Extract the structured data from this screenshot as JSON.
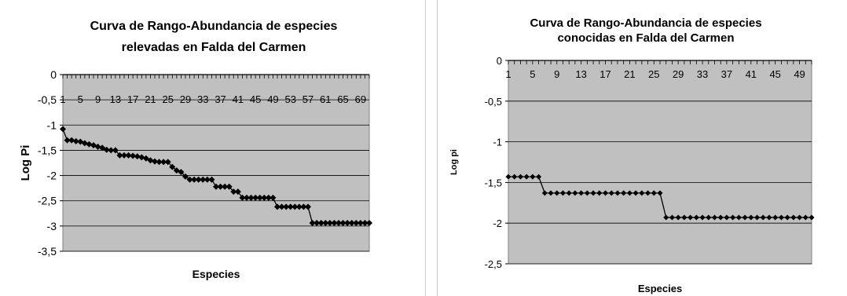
{
  "chart_data": [
    {
      "type": "line",
      "title_lines": [
        "Curva de Rango-Abundancia de especies",
        "relevadas en Falda del Carmen"
      ],
      "xlabel": "Especies",
      "ylabel": "Log Pi",
      "ylim": [
        -3.5,
        0
      ],
      "yticks": [
        0,
        -0.5,
        -1,
        -1.5,
        -2,
        -2.5,
        -3,
        -3.5
      ],
      "ytick_labels": [
        "0",
        "-0,5",
        "-1",
        "-1,5",
        "-2",
        "-2,5",
        "-3",
        "-3,5"
      ],
      "xlim": [
        1,
        71
      ],
      "xticks": [
        1,
        5,
        9,
        13,
        17,
        21,
        25,
        29,
        33,
        37,
        41,
        45,
        49,
        53,
        57,
        61,
        65,
        69
      ],
      "xtick_labels": [
        "1",
        "5",
        "9",
        "13",
        "17",
        "21",
        "25",
        "29",
        "33",
        "37",
        "41",
        "45",
        "49",
        "53",
        "57",
        "61",
        "65",
        "69"
      ],
      "grid": "horizontal",
      "background": "#c0c0c0",
      "line_color": "#000000",
      "marker": "diamond",
      "series": [
        {
          "values": [
            -1.08,
            -1.3,
            -1.3,
            -1.32,
            -1.33,
            -1.36,
            -1.38,
            -1.4,
            -1.43,
            -1.45,
            -1.49,
            -1.5,
            -1.5,
            -1.6,
            -1.6,
            -1.6,
            -1.61,
            -1.62,
            -1.64,
            -1.66,
            -1.7,
            -1.72,
            -1.73,
            -1.73,
            -1.73,
            -1.83,
            -1.9,
            -1.93,
            -2.02,
            -2.08,
            -2.08,
            -2.08,
            -2.08,
            -2.08,
            -2.08,
            -2.22,
            -2.22,
            -2.22,
            -2.22,
            -2.32,
            -2.32,
            -2.44,
            -2.44,
            -2.44,
            -2.44,
            -2.44,
            -2.44,
            -2.44,
            -2.44,
            -2.62,
            -2.62,
            -2.62,
            -2.62,
            -2.62,
            -2.62,
            -2.62,
            -2.62,
            -2.94,
            -2.94,
            -2.94,
            -2.94,
            -2.94,
            -2.94,
            -2.94,
            -2.94,
            -2.94,
            -2.94,
            -2.94,
            -2.94,
            -2.94,
            -2.94
          ]
        }
      ]
    },
    {
      "type": "line",
      "title_lines": [
        "Curva de Rango-Abundancia de especies",
        "conocidas en Falda del Carmen"
      ],
      "xlabel": "Especies",
      "ylabel": "Log pi",
      "ylim": [
        -2.5,
        0
      ],
      "yticks": [
        0,
        -0.5,
        -1,
        -1.5,
        -2,
        -2.5
      ],
      "ytick_labels": [
        "0",
        "-0,5",
        "-1",
        "-1,5",
        "-2",
        "-2,5"
      ],
      "xlim": [
        1,
        51
      ],
      "xticks": [
        1,
        5,
        9,
        13,
        17,
        21,
        25,
        29,
        33,
        37,
        41,
        45,
        49
      ],
      "xtick_labels": [
        "1",
        "5",
        "9",
        "13",
        "17",
        "21",
        "25",
        "29",
        "33",
        "37",
        "41",
        "45",
        "49"
      ],
      "grid": "horizontal",
      "background": "#c0c0c0",
      "line_color": "#000000",
      "marker": "diamond",
      "series": [
        {
          "values": [
            -1.43,
            -1.43,
            -1.43,
            -1.43,
            -1.43,
            -1.43,
            -1.63,
            -1.63,
            -1.63,
            -1.63,
            -1.63,
            -1.63,
            -1.63,
            -1.63,
            -1.63,
            -1.63,
            -1.63,
            -1.63,
            -1.63,
            -1.63,
            -1.63,
            -1.63,
            -1.63,
            -1.63,
            -1.63,
            -1.63,
            -1.93,
            -1.93,
            -1.93,
            -1.93,
            -1.93,
            -1.93,
            -1.93,
            -1.93,
            -1.93,
            -1.93,
            -1.93,
            -1.93,
            -1.93,
            -1.93,
            -1.93,
            -1.93,
            -1.93,
            -1.93,
            -1.93,
            -1.93,
            -1.93,
            -1.93,
            -1.93,
            -1.93,
            -1.93
          ]
        }
      ]
    }
  ]
}
